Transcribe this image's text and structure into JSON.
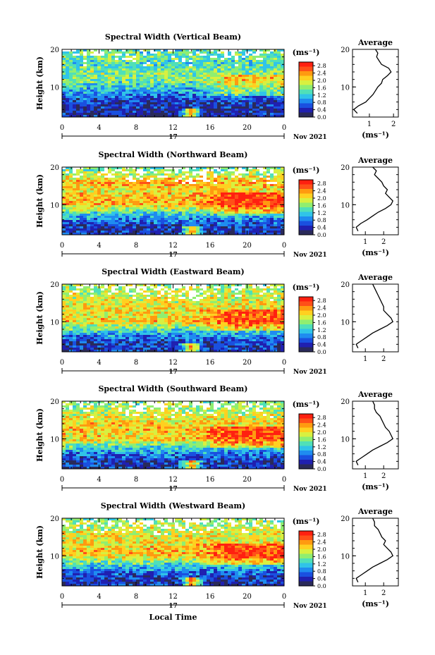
{
  "figure": {
    "date_label": "Nov 2021",
    "day_label": "17",
    "bottom_xlabel": "Local Time",
    "colorscale": [
      "#2a2a5a",
      "#2020b0",
      "#1a50e0",
      "#1f8cf0",
      "#30c4e8",
      "#50e0b8",
      "#90ee70",
      "#d8f040",
      "#ffd020",
      "#ff9a10",
      "#ff5018",
      "#ff2010"
    ],
    "missing_color": "#ffffff"
  },
  "chart_data": [
    {
      "type": "heatmap",
      "title": "Spectral Width (Vertical Beam)",
      "xlabel": "",
      "ylabel": "Height (km)",
      "x_ticks": [
        "0",
        "4",
        "8",
        "12",
        "16",
        "20",
        "0"
      ],
      "xlim": [
        0,
        24
      ],
      "ylim": [
        2,
        20
      ],
      "y_ticks": [
        "20",
        "10"
      ],
      "colorbar": {
        "unit": "(ms⁻¹)",
        "ticks": [
          "2.8",
          "2.4",
          "2.0",
          "1.6",
          "1.2",
          "0.8",
          "0.4",
          "0.0"
        ],
        "range": [
          0.0,
          3.0
        ]
      },
      "z_profile": {
        "heights": [
          2,
          4,
          6,
          8,
          10,
          12,
          14,
          16,
          18,
          20
        ],
        "values": [
          0.35,
          0.35,
          0.5,
          0.8,
          1.2,
          1.55,
          1.6,
          1.3,
          1.5,
          1.35
        ]
      },
      "average": {
        "title": "Average",
        "xlabel": "(ms⁻¹)",
        "x_ticks": [
          "1",
          "2"
        ],
        "xlim": [
          0.3,
          2.2
        ],
        "heights": [
          3,
          4,
          5,
          6,
          7,
          8,
          9,
          10,
          11,
          12,
          13,
          14,
          15,
          16,
          17,
          18,
          19,
          20
        ],
        "values": [
          0.5,
          0.35,
          0.55,
          0.85,
          1.0,
          1.15,
          1.25,
          1.35,
          1.5,
          1.55,
          1.75,
          1.9,
          1.8,
          1.5,
          1.4,
          1.3,
          1.35,
          1.25
        ]
      }
    },
    {
      "type": "heatmap",
      "title": "Spectral Width (Northward Beam)",
      "xlabel": "",
      "ylabel": "Height (km)",
      "x_ticks": [
        "0",
        "4",
        "8",
        "12",
        "16",
        "20",
        "0"
      ],
      "xlim": [
        0,
        24
      ],
      "ylim": [
        2,
        20
      ],
      "y_ticks": [
        "20",
        "10"
      ],
      "colorbar": {
        "unit": "(ms⁻¹)",
        "ticks": [
          "2.8",
          "2.4",
          "2.0",
          "1.6",
          "1.2",
          "0.8",
          "0.4",
          "0.0"
        ],
        "range": [
          0.0,
          3.0
        ]
      },
      "z_profile": {
        "heights": [
          2,
          4,
          6,
          8,
          10,
          12,
          14,
          16,
          18,
          20
        ],
        "values": [
          0.4,
          0.45,
          0.8,
          1.4,
          2.2,
          2.2,
          2.0,
          2.3,
          1.8,
          1.4
        ]
      },
      "average": {
        "title": "Average",
        "xlabel": "(ms⁻¹)",
        "x_ticks": [
          "1",
          "2"
        ],
        "xlim": [
          0.3,
          2.8
        ],
        "heights": [
          3,
          4,
          5,
          6,
          7,
          8,
          9,
          10,
          11,
          12,
          13,
          14,
          15,
          16,
          17,
          18,
          19,
          20
        ],
        "values": [
          0.6,
          0.5,
          0.75,
          1.1,
          1.4,
          1.7,
          2.1,
          2.4,
          2.5,
          2.3,
          2.1,
          2.2,
          2.0,
          1.9,
          1.7,
          1.5,
          1.6,
          1.4
        ]
      }
    },
    {
      "type": "heatmap",
      "title": "Spectral Width (Eastward Beam)",
      "xlabel": "",
      "ylabel": "Height (km)",
      "x_ticks": [
        "0",
        "4",
        "8",
        "12",
        "16",
        "20",
        "0"
      ],
      "xlim": [
        0,
        24
      ],
      "ylim": [
        2,
        20
      ],
      "y_ticks": [
        "20",
        "10"
      ],
      "colorbar": {
        "unit": "(ms⁻¹)",
        "ticks": [
          "2.8",
          "2.4",
          "2.0",
          "1.6",
          "1.2",
          "0.8",
          "0.4",
          "0.0"
        ],
        "range": [
          0.0,
          3.0
        ]
      },
      "z_profile": {
        "heights": [
          2,
          4,
          6,
          8,
          10,
          12,
          14,
          16,
          18,
          20
        ],
        "values": [
          0.4,
          0.45,
          0.8,
          1.4,
          2.1,
          2.0,
          2.0,
          1.9,
          1.8,
          1.6
        ]
      },
      "average": {
        "title": "Average",
        "xlabel": "",
        "x_ticks": [
          "1",
          "2"
        ],
        "xlim": [
          0.3,
          2.8
        ],
        "heights": [
          3,
          4,
          5,
          6,
          7,
          8,
          9,
          10,
          11,
          12,
          13,
          14,
          15,
          16,
          17,
          18,
          19,
          20
        ],
        "values": [
          0.6,
          0.5,
          0.8,
          1.1,
          1.4,
          1.8,
          2.2,
          2.5,
          2.4,
          2.2,
          2.0,
          2.0,
          1.9,
          1.8,
          1.7,
          1.6,
          1.5,
          1.4
        ]
      }
    },
    {
      "type": "heatmap",
      "title": "Spectral Width (Southward Beam)",
      "xlabel": "",
      "ylabel": "Height (km)",
      "x_ticks": [
        "0",
        "4",
        "8",
        "12",
        "16",
        "20",
        "0"
      ],
      "xlim": [
        0,
        24
      ],
      "ylim": [
        2,
        20
      ],
      "y_ticks": [
        "20",
        "10"
      ],
      "colorbar": {
        "unit": "(ms⁻¹)",
        "ticks": [
          "2.8",
          "2.4",
          "2.0",
          "1.6",
          "1.2",
          "0.8",
          "0.4",
          "0.0"
        ],
        "range": [
          0.0,
          3.0
        ]
      },
      "z_profile": {
        "heights": [
          2,
          4,
          6,
          8,
          10,
          12,
          14,
          16,
          18,
          20
        ],
        "values": [
          0.4,
          0.45,
          0.8,
          1.4,
          2.1,
          2.1,
          2.1,
          1.9,
          1.7,
          1.5
        ]
      },
      "average": {
        "title": "Average",
        "xlabel": "(ms⁻¹)",
        "x_ticks": [
          "1",
          "2"
        ],
        "xlim": [
          0.3,
          2.8
        ],
        "heights": [
          3,
          4,
          5,
          6,
          7,
          8,
          9,
          10,
          11,
          12,
          13,
          14,
          15,
          16,
          17,
          18,
          19,
          20
        ],
        "values": [
          0.6,
          0.5,
          0.8,
          1.1,
          1.4,
          1.8,
          2.2,
          2.5,
          2.4,
          2.3,
          2.1,
          2.0,
          1.9,
          1.8,
          1.6,
          1.5,
          1.5,
          1.4
        ]
      }
    },
    {
      "type": "heatmap",
      "title": "Spectral Width (Westward Beam)",
      "xlabel": "Local Time",
      "ylabel": "Height (km)",
      "x_ticks": [
        "0",
        "4",
        "8",
        "12",
        "16",
        "20",
        "0"
      ],
      "xlim": [
        0,
        24
      ],
      "ylim": [
        2,
        20
      ],
      "y_ticks": [
        "20",
        "10"
      ],
      "colorbar": {
        "unit": "(ms⁻¹)",
        "ticks": [
          "2.8",
          "2.4",
          "2.0",
          "1.6",
          "1.2",
          "0.8",
          "0.4",
          "0.0"
        ],
        "range": [
          0.0,
          3.0
        ]
      },
      "z_profile": {
        "heights": [
          2,
          4,
          6,
          8,
          10,
          12,
          14,
          16,
          18,
          20
        ],
        "values": [
          0.4,
          0.45,
          0.8,
          1.4,
          2.1,
          2.1,
          2.0,
          1.9,
          1.8,
          1.5
        ]
      },
      "average": {
        "title": "Average",
        "xlabel": "(ms⁻¹)",
        "x_ticks": [
          "1",
          "2"
        ],
        "xlim": [
          0.3,
          2.8
        ],
        "heights": [
          3,
          4,
          5,
          6,
          7,
          8,
          9,
          10,
          11,
          12,
          13,
          14,
          15,
          16,
          17,
          18,
          19,
          20
        ],
        "values": [
          0.6,
          0.5,
          0.8,
          1.1,
          1.4,
          1.8,
          2.2,
          2.5,
          2.4,
          2.2,
          2.0,
          2.1,
          1.9,
          1.8,
          1.7,
          1.5,
          1.5,
          1.4
        ]
      }
    }
  ]
}
